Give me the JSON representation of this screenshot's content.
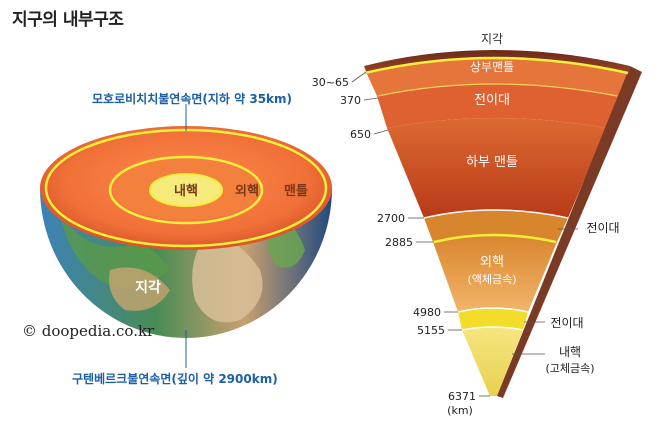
{
  "title": "지구의 내부구조",
  "hemisphere": {
    "moho_label": "모호로비치치불연속면(지하 약 35km)",
    "gutenberg_label": "구텐베르크불연속면(깊이 약 2900km)",
    "inner_core": "내핵",
    "outer_core": "외핵",
    "mantle": "맨틀",
    "crust": "지각",
    "credit": "© doopedia.co.kr"
  },
  "wedge": {
    "top_label": "지각",
    "layers": {
      "upper_mantle": "상부맨틀",
      "transition_1": "전이대",
      "lower_mantle": "하부 맨틀",
      "transition_2": "전이대",
      "outer_core": "외핵",
      "outer_core_state": "(액체금속)",
      "transition_3": "전이대",
      "inner_core": "내핵",
      "inner_core_state": "(고체금속)"
    },
    "depths": [
      "30~65",
      "370",
      "650",
      "2700",
      "2885",
      "4980",
      "5155",
      "6371"
    ],
    "unit": "(km)"
  },
  "colors": {
    "accent_line": "#f5ef3c",
    "label_blue": "#1a5fa8",
    "mantle_red": "#d9582a",
    "outer_core_orange": "#eba050",
    "inner_core_yellow": "#f2e27a"
  }
}
